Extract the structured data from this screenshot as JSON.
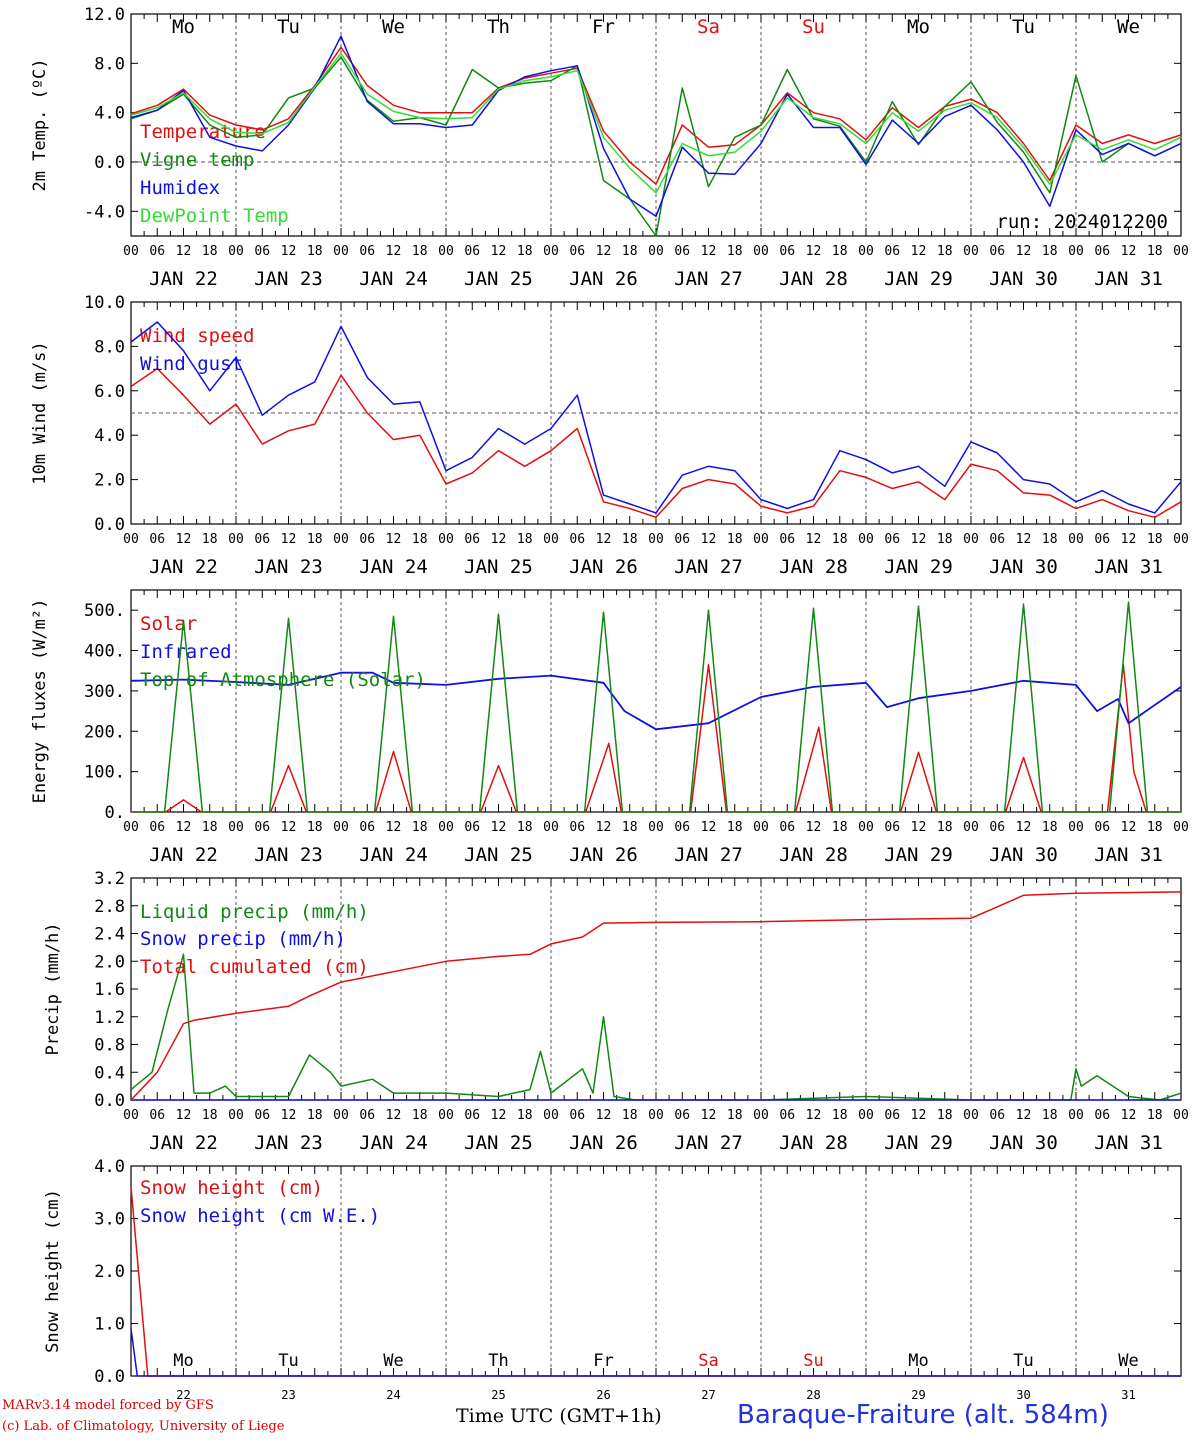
{
  "colors": {
    "red": "#e01010",
    "green": "#118811",
    "blue": "#1010e0",
    "lightgreen": "#33dd33",
    "grid": "#444444"
  },
  "day_names": [
    "Mo",
    "Tu",
    "We",
    "Th",
    "Fr",
    "Sa",
    "Su",
    "Mo",
    "Tu",
    "We"
  ],
  "day_name_colors": [
    "#000",
    "#000",
    "#000",
    "#000",
    "#000",
    "#e01010",
    "#e01010",
    "#000",
    "#000",
    "#000"
  ],
  "date_labels": [
    "JAN 22",
    "JAN 23",
    "JAN 24",
    "JAN 25",
    "JAN 26",
    "JAN 27",
    "JAN 28",
    "JAN 29",
    "JAN 30",
    "JAN 31"
  ],
  "day_numbers": [
    "22",
    "23",
    "24",
    "25",
    "26",
    "27",
    "28",
    "29",
    "30",
    "31"
  ],
  "hour_ticks": [
    "00",
    "06",
    "12",
    "18"
  ],
  "run_label": "run: 2024012200",
  "footer": {
    "model": "MARv3.14 model forced by GFS",
    "lab": "(c) Lab. of Climatology, University of Liege",
    "time_axis": "Time UTC (GMT+1h)",
    "station": "Baraque-Fraiture (alt. 584m)"
  },
  "chart_data": [
    {
      "type": "line",
      "ylabel": "2m Temp. (ºC)",
      "ylim": [
        -6,
        12
      ],
      "yticks": [
        "12.0",
        "8.0",
        "4.0",
        "0.0",
        "-4.0"
      ],
      "ytick_values": [
        12,
        8,
        4,
        0,
        -4
      ],
      "reference_line": 0,
      "x_days": 10,
      "series": [
        {
          "name": "Temperature",
          "color": "#e01010",
          "x": [
            0,
            0.25,
            0.5,
            0.75,
            1,
            1.25,
            1.5,
            1.75,
            2,
            2.25,
            2.5,
            2.75,
            3,
            3.25,
            3.5,
            3.75,
            4,
            4.25,
            4.5,
            4.75,
            5,
            5.25,
            5.5,
            5.75,
            6,
            6.25,
            6.5,
            6.75,
            7,
            7.25,
            7.5,
            7.75,
            8,
            8.25,
            8.5,
            8.75,
            9,
            9.25,
            9.5,
            9.75,
            10
          ],
          "values": [
            3.9,
            4.6,
            5.9,
            3.8,
            3.0,
            2.6,
            3.5,
            6.2,
            9.3,
            6.2,
            4.6,
            4.0,
            4.0,
            4.0,
            6.0,
            6.8,
            7.2,
            7.6,
            2.5,
            0.0,
            -1.8,
            3.0,
            1.2,
            1.4,
            3.0,
            5.6,
            4.0,
            3.5,
            1.8,
            4.4,
            2.8,
            4.5,
            5.1,
            4.0,
            1.5,
            -1.5,
            3.0,
            1.5,
            2.2,
            1.5,
            2.2
          ]
        },
        {
          "name": "Vigne temp",
          "color": "#118811",
          "x": [
            0,
            0.25,
            0.5,
            0.75,
            1,
            1.25,
            1.5,
            1.75,
            2,
            2.25,
            2.5,
            2.75,
            3,
            3.25,
            3.5,
            3.75,
            4,
            4.25,
            4.5,
            4.75,
            5,
            5.25,
            5.5,
            5.75,
            6,
            6.25,
            6.5,
            6.75,
            7,
            7.25,
            7.5,
            7.75,
            8,
            8.25,
            8.5,
            8.75,
            9,
            9.25,
            9.5,
            9.75,
            10
          ],
          "values": [
            3.5,
            4.2,
            5.5,
            3.0,
            2.0,
            2.2,
            5.2,
            6.0,
            8.5,
            5.0,
            3.3,
            3.6,
            3.0,
            7.5,
            6.0,
            6.4,
            6.6,
            7.8,
            -1.5,
            -3.0,
            -6.0,
            6.0,
            -2.0,
            2.0,
            3.0,
            7.5,
            3.5,
            2.9,
            0.0,
            4.9,
            1.4,
            4.5,
            6.5,
            3.2,
            0.8,
            -2.5,
            7.0,
            0.0,
            1.5,
            0.5,
            1.5
          ]
        },
        {
          "name": "Humidex",
          "color": "#1010e0",
          "x": [
            0,
            0.25,
            0.5,
            0.75,
            1,
            1.25,
            1.5,
            1.75,
            2,
            2.25,
            2.5,
            2.75,
            3,
            3.25,
            3.5,
            3.75,
            4,
            4.25,
            4.5,
            4.75,
            5,
            5.25,
            5.5,
            5.75,
            6,
            6.25,
            6.5,
            6.75,
            7,
            7.25,
            7.5,
            7.75,
            8,
            8.25,
            8.5,
            8.75,
            9,
            9.25,
            9.5,
            9.75,
            10
          ],
          "values": [
            3.6,
            4.2,
            5.8,
            2.0,
            1.3,
            0.9,
            3.0,
            6.0,
            10.2,
            4.9,
            3.1,
            3.1,
            2.8,
            3.0,
            5.8,
            6.9,
            7.4,
            7.8,
            1.1,
            -3.0,
            -4.4,
            1.2,
            -0.9,
            -1.0,
            1.5,
            5.5,
            2.8,
            2.8,
            -0.2,
            3.4,
            1.5,
            3.7,
            4.6,
            2.6,
            0.0,
            -3.6,
            2.6,
            0.6,
            1.5,
            0.5,
            1.5
          ]
        },
        {
          "name": "DewPoint Temp",
          "color": "#33dd33",
          "x": [
            0,
            0.25,
            0.5,
            0.75,
            1,
            1.25,
            1.5,
            1.75,
            2,
            2.25,
            2.5,
            2.75,
            3,
            3.25,
            3.5,
            3.75,
            4,
            4.25,
            4.5,
            4.75,
            5,
            5.25,
            5.5,
            5.75,
            6,
            6.25,
            6.5,
            6.75,
            7,
            7.25,
            7.5,
            7.75,
            8,
            8.25,
            8.5,
            8.75,
            9,
            9.25,
            9.5,
            9.75,
            10
          ],
          "values": [
            3.8,
            4.4,
            5.6,
            3.5,
            2.4,
            2.3,
            3.2,
            6.1,
            8.8,
            5.5,
            4.1,
            3.6,
            3.5,
            3.6,
            5.9,
            6.6,
            6.9,
            7.4,
            2.0,
            -0.5,
            -2.5,
            1.5,
            0.5,
            0.8,
            2.5,
            5.2,
            3.6,
            3.1,
            1.5,
            4.0,
            2.5,
            4.2,
            4.8,
            3.6,
            1.2,
            -1.8,
            2.2,
            1.0,
            1.8,
            1.0,
            2.0
          ]
        }
      ]
    },
    {
      "type": "line",
      "ylabel": "10m Wind (m/s)",
      "ylim": [
        0,
        10
      ],
      "yticks": [
        "10.0",
        "8.0",
        "6.0",
        "4.0",
        "2.0",
        "0.0"
      ],
      "ytick_values": [
        10,
        8,
        6,
        4,
        2,
        0
      ],
      "reference_line": 5,
      "x_days": 10,
      "series": [
        {
          "name": "Wind speed",
          "color": "#e01010",
          "x": [
            0,
            0.25,
            0.5,
            0.75,
            1,
            1.25,
            1.5,
            1.75,
            2,
            2.25,
            2.5,
            2.75,
            3,
            3.25,
            3.5,
            3.75,
            4,
            4.25,
            4.5,
            4.75,
            5,
            5.25,
            5.5,
            5.75,
            6,
            6.25,
            6.5,
            6.75,
            7,
            7.25,
            7.5,
            7.75,
            8,
            8.25,
            8.5,
            8.75,
            9,
            9.25,
            9.5,
            9.75,
            10
          ],
          "values": [
            6.2,
            7.0,
            5.8,
            4.5,
            5.4,
            3.6,
            4.2,
            4.5,
            6.7,
            5.0,
            3.8,
            4.0,
            1.8,
            2.3,
            3.3,
            2.6,
            3.3,
            4.3,
            1.0,
            0.7,
            0.3,
            1.6,
            2.0,
            1.8,
            0.8,
            0.5,
            0.8,
            2.4,
            2.1,
            1.6,
            1.9,
            1.1,
            2.7,
            2.4,
            1.4,
            1.3,
            0.7,
            1.1,
            0.6,
            0.3,
            1.0
          ]
        },
        {
          "name": "Wind gust",
          "color": "#1010e0",
          "x": [
            0,
            0.25,
            0.5,
            0.75,
            1,
            1.25,
            1.5,
            1.75,
            2,
            2.25,
            2.5,
            2.75,
            3,
            3.25,
            3.5,
            3.75,
            4,
            4.25,
            4.5,
            4.75,
            5,
            5.25,
            5.5,
            5.75,
            6,
            6.25,
            6.5,
            6.75,
            7,
            7.25,
            7.5,
            7.75,
            8,
            8.25,
            8.5,
            8.75,
            9,
            9.25,
            9.5,
            9.75,
            10
          ],
          "values": [
            8.2,
            9.1,
            7.8,
            6.0,
            7.5,
            4.9,
            5.8,
            6.4,
            8.9,
            6.6,
            5.4,
            5.5,
            2.4,
            3.0,
            4.3,
            3.6,
            4.3,
            5.8,
            1.3,
            0.9,
            0.5,
            2.2,
            2.6,
            2.4,
            1.1,
            0.7,
            1.1,
            3.3,
            2.9,
            2.3,
            2.6,
            1.7,
            3.7,
            3.2,
            2.0,
            1.8,
            1.0,
            1.5,
            0.9,
            0.5,
            1.9
          ]
        }
      ]
    },
    {
      "type": "line",
      "ylabel": "Energy fluxes (W/m²)",
      "ylim": [
        0,
        550
      ],
      "yticks": [
        "500.",
        "400.",
        "300.",
        "200.",
        "100.",
        "0."
      ],
      "ytick_values": [
        500,
        400,
        300,
        200,
        100,
        0
      ],
      "x_days": 10,
      "series": [
        {
          "name": "Solar",
          "color": "#e01010",
          "x": [
            0,
            0.33,
            0.5,
            0.67,
            1,
            1.33,
            1.5,
            1.67,
            2,
            2.33,
            2.5,
            2.67,
            3,
            3.33,
            3.5,
            3.67,
            4,
            4.33,
            4.55,
            4.67,
            5,
            5.33,
            5.5,
            5.67,
            6,
            6.33,
            6.55,
            6.67,
            7,
            7.33,
            7.5,
            7.67,
            8,
            8.33,
            8.5,
            8.67,
            9,
            9.3,
            9.45,
            9.55,
            9.67,
            10
          ],
          "values": [
            0,
            0,
            30,
            0,
            0,
            0,
            115,
            0,
            0,
            0,
            150,
            0,
            0,
            0,
            115,
            0,
            0,
            0,
            170,
            0,
            0,
            0,
            365,
            0,
            0,
            0,
            210,
            0,
            0,
            0,
            148,
            0,
            0,
            0,
            135,
            0,
            0,
            0,
            365,
            100,
            0,
            0
          ]
        },
        {
          "name": "Infrared",
          "color": "#1010e0",
          "x": [
            0,
            0.5,
            1,
            1.5,
            2,
            2.3,
            2.5,
            3,
            3.5,
            4,
            4.5,
            4.7,
            5,
            5.5,
            6,
            6.5,
            7,
            7.2,
            7.5,
            8,
            8.5,
            9,
            9.2,
            9.4,
            9.5,
            10
          ],
          "values": [
            325,
            328,
            322,
            315,
            345,
            345,
            320,
            315,
            330,
            338,
            320,
            250,
            205,
            220,
            285,
            310,
            320,
            260,
            282,
            300,
            325,
            315,
            250,
            280,
            220,
            310
          ]
        },
        {
          "name": "Top of Atmosphere (Solar)",
          "color": "#118811",
          "x": [
            0,
            0.32,
            0.5,
            0.68,
            1,
            1.32,
            1.5,
            1.68,
            2,
            2.32,
            2.5,
            2.68,
            3,
            3.32,
            3.5,
            3.68,
            4,
            4.32,
            4.5,
            4.68,
            5,
            5.32,
            5.5,
            5.68,
            6,
            6.32,
            6.5,
            6.68,
            7,
            7.32,
            7.5,
            7.68,
            8,
            8.32,
            8.5,
            8.68,
            9,
            9.32,
            9.5,
            9.68,
            10
          ],
          "values": [
            0,
            0,
            475,
            0,
            0,
            0,
            480,
            0,
            0,
            0,
            485,
            0,
            0,
            0,
            490,
            0,
            0,
            0,
            495,
            0,
            0,
            0,
            500,
            0,
            0,
            0,
            505,
            0,
            0,
            0,
            510,
            0,
            0,
            0,
            515,
            0,
            0,
            0,
            520,
            0,
            0
          ]
        }
      ]
    },
    {
      "type": "line",
      "ylabel": "Precip (mm/h)",
      "ylim": [
        0,
        3.2
      ],
      "yticks": [
        "3.2",
        "2.8",
        "2.4",
        "2.0",
        "1.6",
        "1.2",
        "0.8",
        "0.4",
        "0.0"
      ],
      "ytick_values": [
        3.2,
        2.8,
        2.4,
        2.0,
        1.6,
        1.2,
        0.8,
        0.4,
        0.0
      ],
      "x_days": 10,
      "series": [
        {
          "name": "Liquid precip (mm/h)",
          "color": "#118811",
          "x": [
            0,
            0.2,
            0.35,
            0.5,
            0.6,
            0.75,
            0.9,
            1,
            1.5,
            1.7,
            1.9,
            2,
            2.3,
            2.5,
            3,
            3.5,
            3.8,
            3.9,
            4,
            4.3,
            4.4,
            4.5,
            4.6,
            4.8,
            5,
            6,
            7,
            8,
            8.95,
            9,
            9.05,
            9.2,
            9.5,
            9.8,
            10
          ],
          "values": [
            0.15,
            0.4,
            1.3,
            2.1,
            0.1,
            0.1,
            0.2,
            0.05,
            0.05,
            0.65,
            0.4,
            0.2,
            0.3,
            0.1,
            0.1,
            0.05,
            0.15,
            0.7,
            0.1,
            0.45,
            0.1,
            1.2,
            0.05,
            0.0,
            0.0,
            0.0,
            0.05,
            0.0,
            0.0,
            0.45,
            0.2,
            0.35,
            0.05,
            0.0,
            0.1
          ]
        },
        {
          "name": "Snow precip (mm/h)",
          "color": "#1010e0",
          "x": [
            0,
            10
          ],
          "values": [
            0,
            0
          ]
        },
        {
          "name": "Total cumulated (cm)",
          "color": "#e01010",
          "x": [
            0,
            0.25,
            0.5,
            0.6,
            1,
            1.5,
            1.7,
            2,
            2.5,
            3,
            3.5,
            3.8,
            4,
            4.3,
            4.5,
            5,
            6,
            7,
            7.5,
            8,
            8.2,
            8.5,
            9,
            10
          ],
          "values": [
            0,
            0.4,
            1.1,
            1.15,
            1.25,
            1.35,
            1.5,
            1.7,
            1.85,
            2.0,
            2.07,
            2.1,
            2.25,
            2.35,
            2.55,
            2.56,
            2.57,
            2.6,
            2.61,
            2.62,
            2.75,
            2.95,
            2.98,
            3.0
          ]
        }
      ]
    },
    {
      "type": "line",
      "ylabel": "Snow height (cm)",
      "ylim": [
        0,
        4
      ],
      "yticks": [
        "4.0",
        "3.0",
        "2.0",
        "1.0",
        "0.0"
      ],
      "ytick_values": [
        4,
        3,
        2,
        1,
        0
      ],
      "x_days": 10,
      "series": [
        {
          "name": "Snow height (cm)",
          "color": "#e01010",
          "x": [
            0,
            0.16,
            10
          ],
          "values": [
            3.6,
            0,
            0
          ]
        },
        {
          "name": "Snow height (cm W.E.)",
          "color": "#1010e0",
          "x": [
            0,
            0.06,
            10
          ],
          "values": [
            0.9,
            0,
            0
          ]
        }
      ]
    }
  ]
}
